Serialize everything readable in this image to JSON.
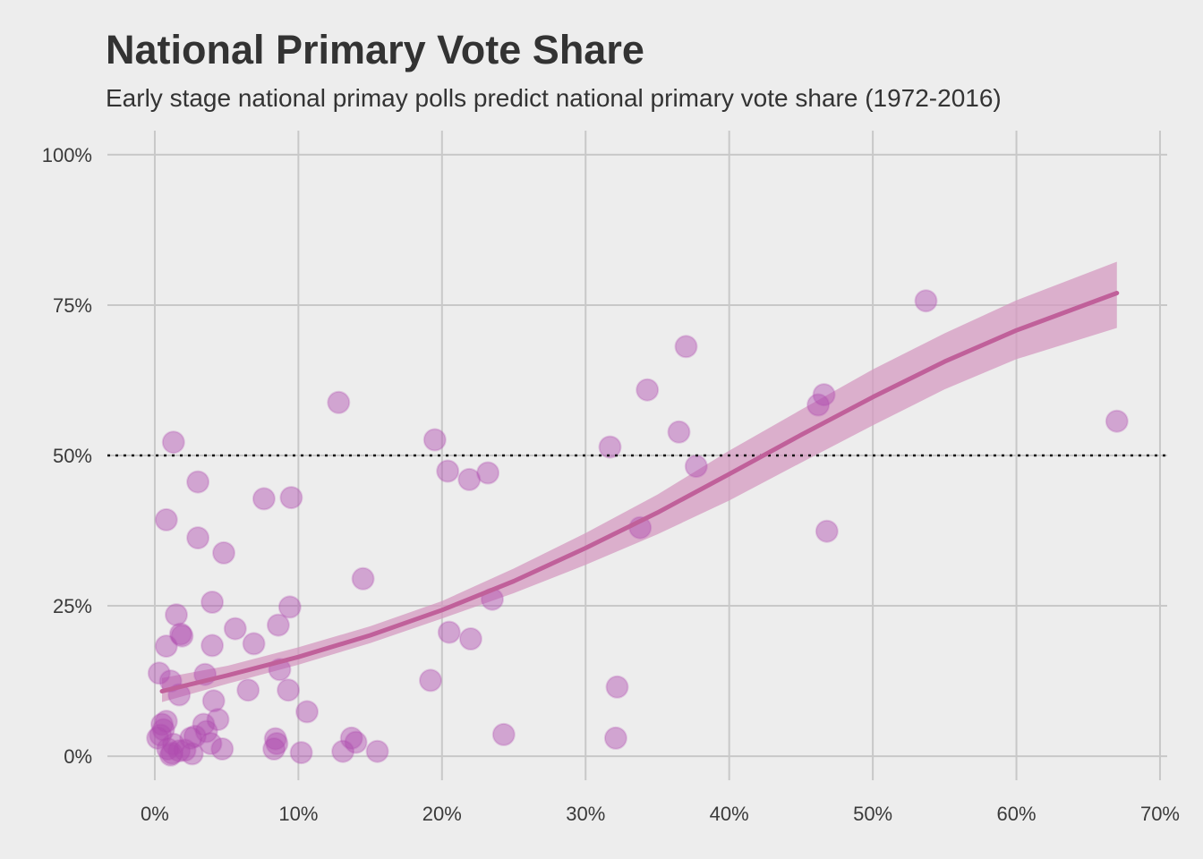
{
  "chart_data": {
    "type": "scatter",
    "title": "National Primary Vote Share",
    "subtitle": "Early stage national primay polls predict national primary vote share (1972-2016)",
    "xlabel": "",
    "ylabel": "",
    "xlim": [
      -0.033,
      0.705
    ],
    "ylim": [
      -0.04,
      1.04
    ],
    "x_ticks": [
      0,
      0.1,
      0.2,
      0.3,
      0.4,
      0.5,
      0.6,
      0.7
    ],
    "x_tick_labels": [
      "0%",
      "10%",
      "20%",
      "30%",
      "40%",
      "50%",
      "60%",
      "70%"
    ],
    "y_ticks": [
      0,
      0.25,
      0.5,
      0.75,
      1.0
    ],
    "y_tick_labels": [
      "0%",
      "25%",
      "50%",
      "75%",
      "100%"
    ],
    "grid": true,
    "reference_line": {
      "y": 0.5,
      "style": "dotted",
      "color": "#111111"
    },
    "point_color": "#b04cb0",
    "fit_color": "#c0609a",
    "band_color": "#d49ac0",
    "background": "#ededed",
    "points": [
      [
        0.013,
        0.522
      ],
      [
        0.008,
        0.393
      ],
      [
        0.003,
        0.138
      ],
      [
        0.008,
        0.183
      ],
      [
        0.015,
        0.235
      ],
      [
        0.018,
        0.203
      ],
      [
        0.019,
        0.2
      ],
      [
        0.011,
        0.125
      ],
      [
        0.017,
        0.102
      ],
      [
        0.005,
        0.053
      ],
      [
        0.004,
        0.035
      ],
      [
        0.006,
        0.044
      ],
      [
        0.008,
        0.058
      ],
      [
        0.002,
        0.03
      ],
      [
        0.009,
        0.012
      ],
      [
        0.012,
        0.005
      ],
      [
        0.013,
        0.02
      ],
      [
        0.017,
        0.009
      ],
      [
        0.021,
        0.01
      ],
      [
        0.011,
        0.002
      ],
      [
        0.03,
        0.456
      ],
      [
        0.03,
        0.363
      ],
      [
        0.048,
        0.338
      ],
      [
        0.04,
        0.256
      ],
      [
        0.04,
        0.184
      ],
      [
        0.035,
        0.136
      ],
      [
        0.041,
        0.092
      ],
      [
        0.034,
        0.053
      ],
      [
        0.044,
        0.061
      ],
      [
        0.028,
        0.033
      ],
      [
        0.036,
        0.041
      ],
      [
        0.025,
        0.03
      ],
      [
        0.039,
        0.021
      ],
      [
        0.047,
        0.012
      ],
      [
        0.026,
        0.004
      ],
      [
        0.056,
        0.212
      ],
      [
        0.069,
        0.187
      ],
      [
        0.065,
        0.11
      ],
      [
        0.076,
        0.428
      ],
      [
        0.095,
        0.43
      ],
      [
        0.086,
        0.218
      ],
      [
        0.094,
        0.248
      ],
      [
        0.087,
        0.144
      ],
      [
        0.093,
        0.11
      ],
      [
        0.084,
        0.029
      ],
      [
        0.085,
        0.021
      ],
      [
        0.083,
        0.012
      ],
      [
        0.106,
        0.074
      ],
      [
        0.102,
        0.006
      ],
      [
        0.128,
        0.588
      ],
      [
        0.145,
        0.295
      ],
      [
        0.137,
        0.03
      ],
      [
        0.14,
        0.023
      ],
      [
        0.131,
        0.008
      ],
      [
        0.155,
        0.008
      ],
      [
        0.195,
        0.526
      ],
      [
        0.204,
        0.474
      ],
      [
        0.219,
        0.46
      ],
      [
        0.232,
        0.471
      ],
      [
        0.192,
        0.126
      ],
      [
        0.205,
        0.206
      ],
      [
        0.22,
        0.195
      ],
      [
        0.235,
        0.261
      ],
      [
        0.243,
        0.036
      ],
      [
        0.317,
        0.514
      ],
      [
        0.343,
        0.609
      ],
      [
        0.37,
        0.681
      ],
      [
        0.365,
        0.539
      ],
      [
        0.377,
        0.482
      ],
      [
        0.338,
        0.38
      ],
      [
        0.321,
        0.03
      ],
      [
        0.322,
        0.115
      ],
      [
        0.462,
        0.584
      ],
      [
        0.466,
        0.601
      ],
      [
        0.468,
        0.374
      ],
      [
        0.537,
        0.757
      ],
      [
        0.67,
        0.557
      ]
    ],
    "fit_line": {
      "x": [
        0.005,
        0.05,
        0.1,
        0.15,
        0.2,
        0.25,
        0.3,
        0.35,
        0.4,
        0.45,
        0.5,
        0.55,
        0.6,
        0.67
      ],
      "y": [
        0.108,
        0.134,
        0.165,
        0.201,
        0.243,
        0.291,
        0.346,
        0.405,
        0.469,
        0.534,
        0.597,
        0.656,
        0.708,
        0.77
      ],
      "lower": [
        0.09,
        0.12,
        0.152,
        0.188,
        0.229,
        0.271,
        0.318,
        0.369,
        0.425,
        0.488,
        0.55,
        0.61,
        0.66,
        0.712
      ],
      "upper": [
        0.13,
        0.15,
        0.181,
        0.216,
        0.258,
        0.312,
        0.371,
        0.435,
        0.508,
        0.576,
        0.643,
        0.703,
        0.758,
        0.822
      ]
    }
  }
}
